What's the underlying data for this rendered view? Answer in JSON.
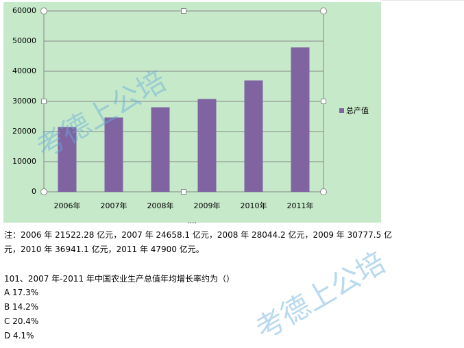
{
  "chart_data": {
    "type": "bar",
    "categories": [
      "2006年",
      "2007年",
      "2008年",
      "2009年",
      "2010年",
      "2011年"
    ],
    "series": [
      {
        "name": "总产值",
        "color": "#8064a2",
        "values": [
          21522.28,
          24658.1,
          28044.2,
          30777.5,
          36941.1,
          47900
        ]
      }
    ],
    "ylim": [
      0,
      60000
    ],
    "yticks": [
      0,
      10000,
      20000,
      30000,
      40000,
      50000,
      60000
    ],
    "grid": true,
    "legend": "right"
  },
  "note": "注：2006 年 21522.28 亿元，2007 年 24658.1 亿元，2008 年 28044.2 亿元，2009 年 30777.5 亿元，2010 年 36941.1 亿元，2011 年 47900 亿元。",
  "question": "101、2007 年-2011 年中国农业生产总值年均增长率约为（）",
  "options": [
    "A 17.3%",
    "B 14.2%",
    "C 20.4%",
    "D 4.1%"
  ],
  "watermark": "考德上公培"
}
